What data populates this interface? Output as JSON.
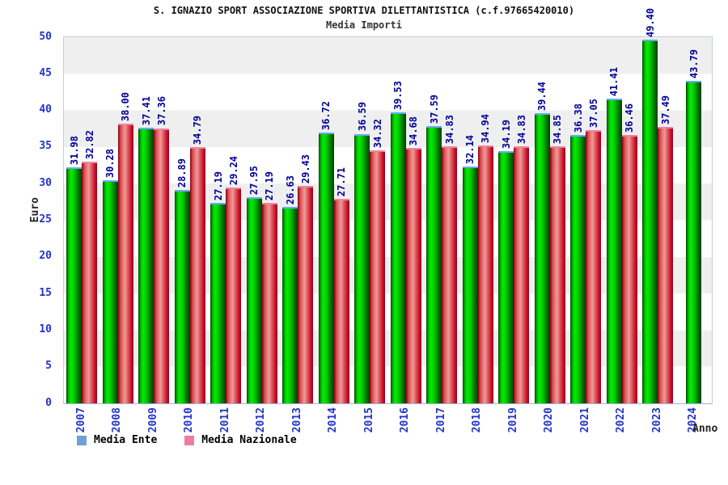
{
  "title": "S. IGNAZIO SPORT ASSOCIAZIONE SPORTIVA DILETTANTISTICA (c.f.97665420010)",
  "subtitle": "Media Importi",
  "y_axis": {
    "label": "Euro",
    "ticks": [
      0,
      5,
      10,
      15,
      20,
      25,
      30,
      35,
      40,
      45,
      50
    ],
    "max": 50
  },
  "x_axis": {
    "label": "Anno"
  },
  "legend": {
    "items": [
      {
        "label": "Media Ente",
        "color": "#6FA0D6"
      },
      {
        "label": "Media Nazionale",
        "color": "#EE7CA0"
      }
    ]
  },
  "colors": {
    "ente_bar": "#00CC00",
    "ente_bar_edge": "#66AAEE",
    "nazionale_bar": "#DD2233",
    "nazionale_bar_edge": "#F080A0",
    "value_label": "#000099",
    "axis_tick_label": "#2233CC",
    "band_gray": "#EFEFEF"
  },
  "chart_data": {
    "type": "bar",
    "categories": [
      "2007",
      "2008",
      "2009",
      "2010",
      "2011",
      "2012",
      "2013",
      "2014",
      "2015",
      "2016",
      "2017",
      "2018",
      "2019",
      "2020",
      "2021",
      "2022",
      "2023",
      "2024"
    ],
    "series": [
      {
        "name": "Media Ente",
        "values": [
          31.98,
          30.28,
          37.41,
          28.89,
          27.19,
          27.95,
          26.63,
          36.72,
          36.59,
          39.53,
          37.59,
          32.14,
          34.19,
          39.44,
          36.38,
          41.41,
          49.4,
          43.79
        ]
      },
      {
        "name": "Media Nazionale",
        "values": [
          32.82,
          38.0,
          37.36,
          34.79,
          29.24,
          27.19,
          29.43,
          27.71,
          34.32,
          34.68,
          34.83,
          34.94,
          34.83,
          34.85,
          37.05,
          36.46,
          37.49,
          null
        ]
      }
    ],
    "title": "Media Importi",
    "xlabel": "Anno",
    "ylabel": "Euro",
    "ylim": [
      0,
      50
    ],
    "legend_position": "bottom",
    "grid": "horizontal-bands"
  }
}
